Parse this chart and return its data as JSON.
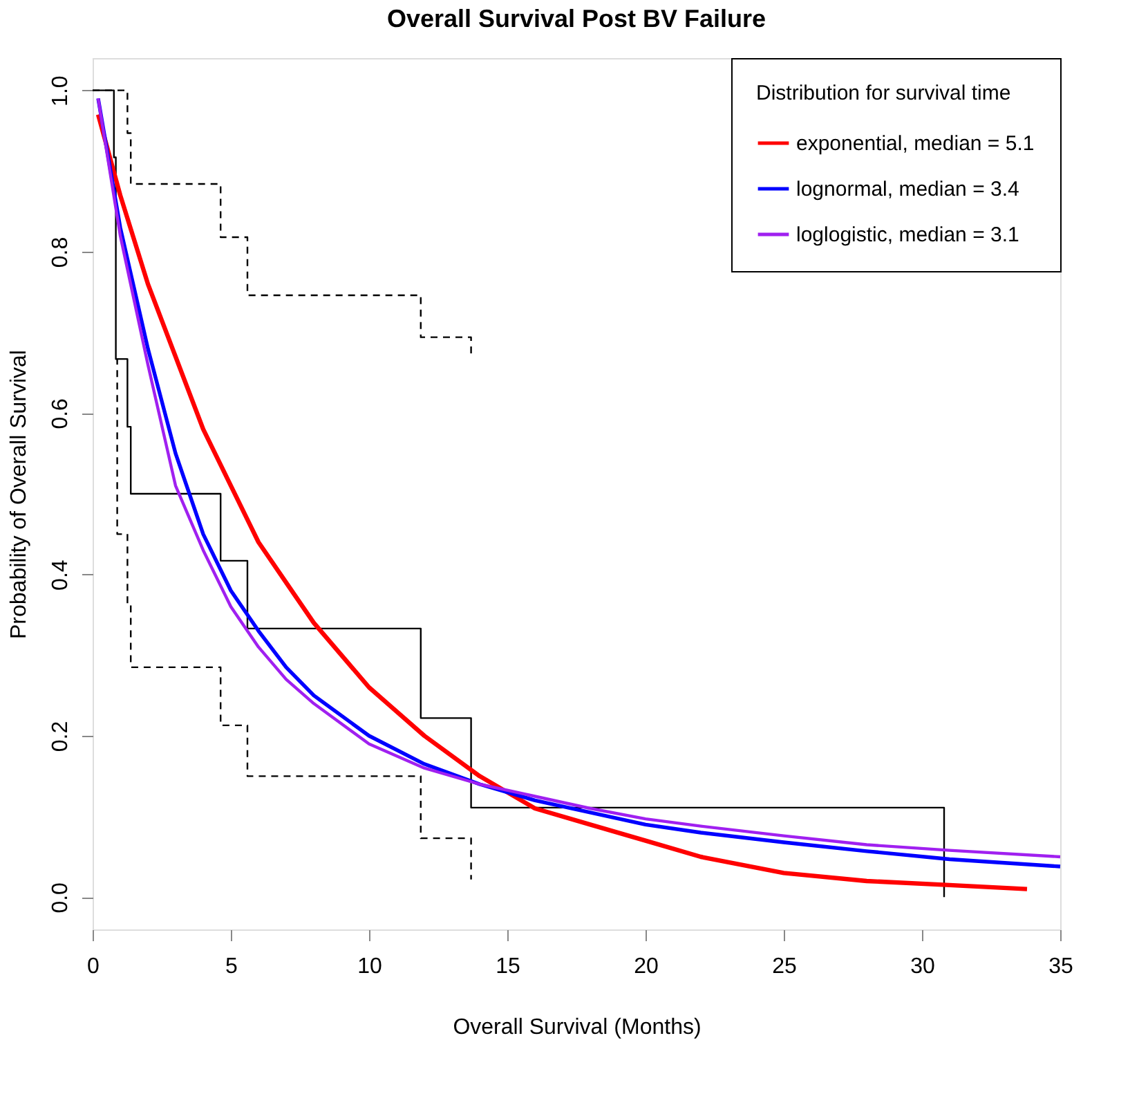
{
  "chart_data": {
    "type": "line",
    "title": "Overall Survival Post BV Failure",
    "xlabel": "Overall Survival (Months)",
    "ylabel": "Probability of Overall Survival",
    "legend_title": "Distribution for survival time",
    "xlim": [
      0,
      35
    ],
    "xticks": [
      0,
      5,
      10,
      15,
      20,
      25,
      30,
      35
    ],
    "ylim": [
      -0.04,
      1.04
    ],
    "yticks": [
      {
        "value": 0,
        "label": "0.0"
      },
      {
        "value": 0.2,
        "label": "0.2"
      },
      {
        "value": 0.4,
        "label": "0.4"
      },
      {
        "value": 0.6,
        "label": "0.6"
      },
      {
        "value": 0.8,
        "label": "0.8"
      },
      {
        "value": 1,
        "label": "1.0"
      }
    ],
    "grid": false,
    "legend": "top right",
    "marker": "none",
    "series": [
      {
        "type": "step",
        "color": "#000000",
        "line_style": "solid",
        "x": [
          0,
          0.77,
          0.84,
          1.26,
          1.38,
          4.63,
          5.6,
          11.87,
          13.69,
          30.8
        ],
        "values": [
          1.0,
          0.917,
          0.667,
          0.583,
          0.5,
          0.417,
          0.333,
          0.222,
          0.111,
          0.0
        ]
      },
      {
        "type": "step",
        "color": "#000000",
        "line_style": "dashed",
        "x": [
          0,
          1.26,
          1.38,
          4.63,
          5.6,
          11.87,
          13.69
        ],
        "values": [
          1.0,
          0.947,
          0.884,
          0.818,
          0.746,
          0.694,
          0.67
        ]
      },
      {
        "type": "step",
        "color": "#000000",
        "line_style": "dashed",
        "x": [
          0.84,
          0.89,
          1.26,
          1.38,
          4.63,
          5.6,
          11.87,
          13.69
        ],
        "values": [
          0.667,
          0.45,
          0.364,
          0.285,
          0.213,
          0.15,
          0.073,
          0.022
        ]
      },
      {
        "name": "exponential, median = 5.1",
        "color": "#ff0000",
        "x": [
          0.2,
          1,
          2,
          3,
          4,
          5,
          6,
          7,
          8,
          10,
          12,
          14,
          16,
          18,
          20,
          22,
          25,
          28,
          31,
          33.8
        ],
        "values": [
          0.97,
          0.87,
          0.76,
          0.67,
          0.58,
          0.51,
          0.44,
          0.39,
          0.34,
          0.26,
          0.2,
          0.15,
          0.11,
          0.09,
          0.07,
          0.05,
          0.03,
          0.02,
          0.015,
          0.01
        ]
      },
      {
        "name": "lognormal, median = 3.4",
        "color": "#0000ff",
        "x": [
          0.2,
          1,
          2,
          3,
          4,
          5,
          6,
          7,
          8,
          10,
          12,
          14,
          16,
          18,
          20,
          22,
          25,
          28,
          31,
          35
        ],
        "values": [
          0.99,
          0.83,
          0.68,
          0.55,
          0.45,
          0.38,
          0.33,
          0.285,
          0.25,
          0.2,
          0.165,
          0.14,
          0.12,
          0.105,
          0.09,
          0.08,
          0.068,
          0.057,
          0.047,
          0.038
        ]
      },
      {
        "name": "loglogistic, median = 3.1",
        "color": "#a020f0",
        "x": [
          0.2,
          1,
          2,
          3,
          4,
          5,
          6,
          7,
          8,
          10,
          12,
          14,
          16,
          18,
          20,
          22,
          25,
          28,
          31,
          35
        ],
        "values": [
          0.99,
          0.82,
          0.66,
          0.51,
          0.43,
          0.36,
          0.31,
          0.27,
          0.24,
          0.19,
          0.16,
          0.14,
          0.125,
          0.11,
          0.097,
          0.088,
          0.076,
          0.065,
          0.058,
          0.05
        ]
      }
    ]
  }
}
